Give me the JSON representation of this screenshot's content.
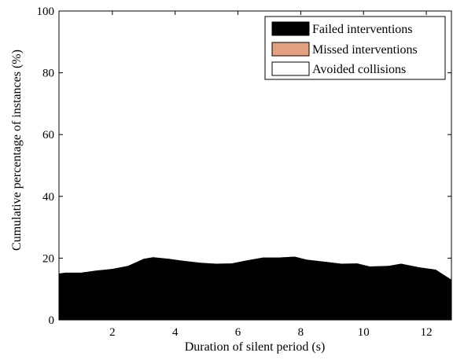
{
  "chart_data": {
    "type": "area",
    "title": "",
    "xlabel": "Duration of silent period (s)",
    "ylabel": "Cumulative percentage of instances (%)",
    "xlim": [
      0.3,
      12.8
    ],
    "ylim": [
      0,
      100
    ],
    "xticks": [
      "2",
      "4",
      "6",
      "8",
      "10",
      "12"
    ],
    "yticks": [
      "0",
      "20",
      "40",
      "60",
      "80",
      "100"
    ],
    "grid": false,
    "legend_position": "top-right",
    "x": [
      0.3,
      0.5,
      1.0,
      1.5,
      2.0,
      2.5,
      3.0,
      3.3,
      3.8,
      4.2,
      4.8,
      5.3,
      5.8,
      6.3,
      6.8,
      7.3,
      7.8,
      8.2,
      8.8,
      9.3,
      9.8,
      10.2,
      10.8,
      11.2,
      11.8,
      12.3,
      12.8
    ],
    "series": [
      {
        "name": "Failed interventions",
        "color": "#000000",
        "values": [
          15.0,
          15.3,
          15.3,
          16.0,
          16.5,
          17.5,
          19.8,
          20.3,
          19.8,
          19.2,
          18.5,
          18.2,
          18.3,
          19.3,
          20.2,
          20.2,
          20.5,
          19.5,
          18.8,
          18.2,
          18.3,
          17.3,
          17.5,
          18.2,
          17.0,
          16.3,
          13.0
        ]
      },
      {
        "name": "Missed interventions",
        "color": "#E3A081",
        "values": [
          15.0,
          15.3,
          15.3,
          16.0,
          16.5,
          17.5,
          19.8,
          20.3,
          19.8,
          19.2,
          18.5,
          18.2,
          18.3,
          19.3,
          20.2,
          20.2,
          20.5,
          19.5,
          18.8,
          18.2,
          18.3,
          17.3,
          17.5,
          18.2,
          17.0,
          16.3,
          13.0
        ]
      },
      {
        "name": "Avoided collisions",
        "color": "#FFFFFF",
        "values": [
          100,
          100,
          100,
          100,
          100,
          100,
          100,
          100,
          100,
          100,
          100,
          100,
          100,
          100,
          100,
          100,
          100,
          100,
          100,
          100,
          100,
          100,
          100,
          100,
          100,
          100,
          100
        ]
      }
    ]
  }
}
